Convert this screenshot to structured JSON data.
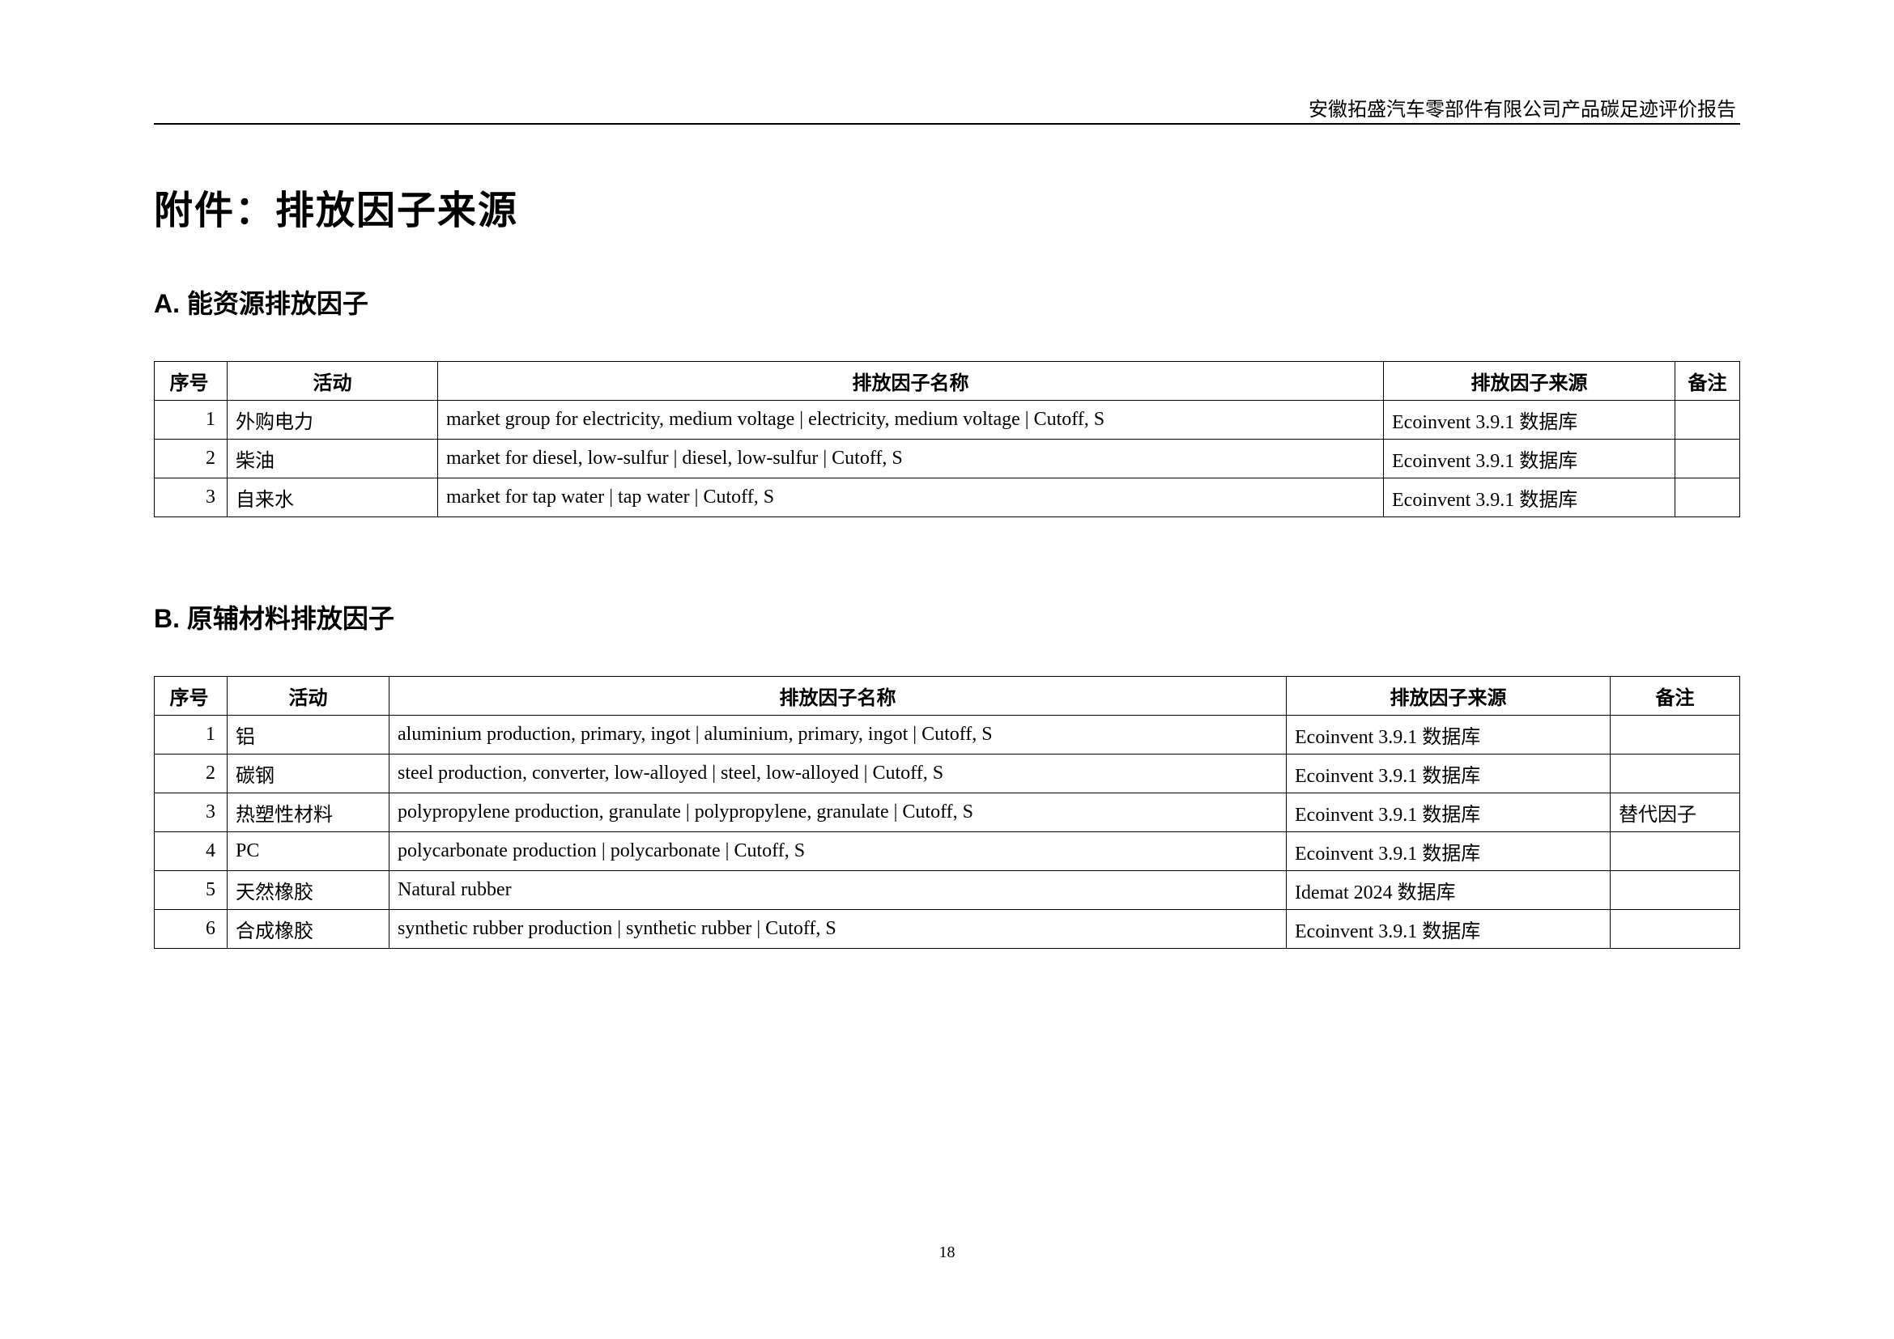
{
  "header": "安徽拓盛汽车零部件有限公司产品碳足迹评价报告",
  "main_title": "附件：排放因子来源",
  "page_number": "18",
  "section_a": {
    "title": "A. 能资源排放因子",
    "columns": {
      "seq": "序号",
      "activity": "活动",
      "name": "排放因子名称",
      "source": "排放因子来源",
      "note": "备注"
    },
    "rows": [
      {
        "seq": "1",
        "activity": "外购电力",
        "name": "market group for electricity, medium voltage | electricity, medium voltage | Cutoff, S",
        "source": "Ecoinvent 3.9.1 数据库",
        "note": ""
      },
      {
        "seq": "2",
        "activity": "柴油",
        "name": "market for diesel, low-sulfur | diesel, low-sulfur | Cutoff, S",
        "source": "Ecoinvent 3.9.1 数据库",
        "note": ""
      },
      {
        "seq": "3",
        "activity": "自来水",
        "name": "market for tap water | tap water | Cutoff, S",
        "source": "Ecoinvent 3.9.1 数据库",
        "note": ""
      }
    ]
  },
  "section_b": {
    "title": "B. 原辅材料排放因子",
    "columns": {
      "seq": "序号",
      "activity": "活动",
      "name": "排放因子名称",
      "source": "排放因子来源",
      "note": "备注"
    },
    "rows": [
      {
        "seq": "1",
        "activity": "铝",
        "name": "aluminium production, primary, ingot | aluminium, primary, ingot | Cutoff, S",
        "source": "Ecoinvent 3.9.1 数据库",
        "note": ""
      },
      {
        "seq": "2",
        "activity": "碳钢",
        "name": "steel production, converter, low-alloyed | steel, low-alloyed | Cutoff, S",
        "source": "Ecoinvent 3.9.1 数据库",
        "note": ""
      },
      {
        "seq": "3",
        "activity": "热塑性材料",
        "name": "polypropylene production, granulate | polypropylene, granulate | Cutoff, S",
        "source": "Ecoinvent 3.9.1 数据库",
        "note": "替代因子"
      },
      {
        "seq": "4",
        "activity": "PC",
        "name": "polycarbonate production | polycarbonate | Cutoff, S",
        "source": "Ecoinvent 3.9.1 数据库",
        "note": ""
      },
      {
        "seq": "5",
        "activity": "天然橡胶",
        "name": "Natural rubber",
        "source": "Idemat 2024 数据库",
        "note": ""
      },
      {
        "seq": "6",
        "activity": "合成橡胶",
        "name": "synthetic rubber production | synthetic rubber | Cutoff, S",
        "source": "Ecoinvent 3.9.1 数据库",
        "note": ""
      }
    ]
  }
}
